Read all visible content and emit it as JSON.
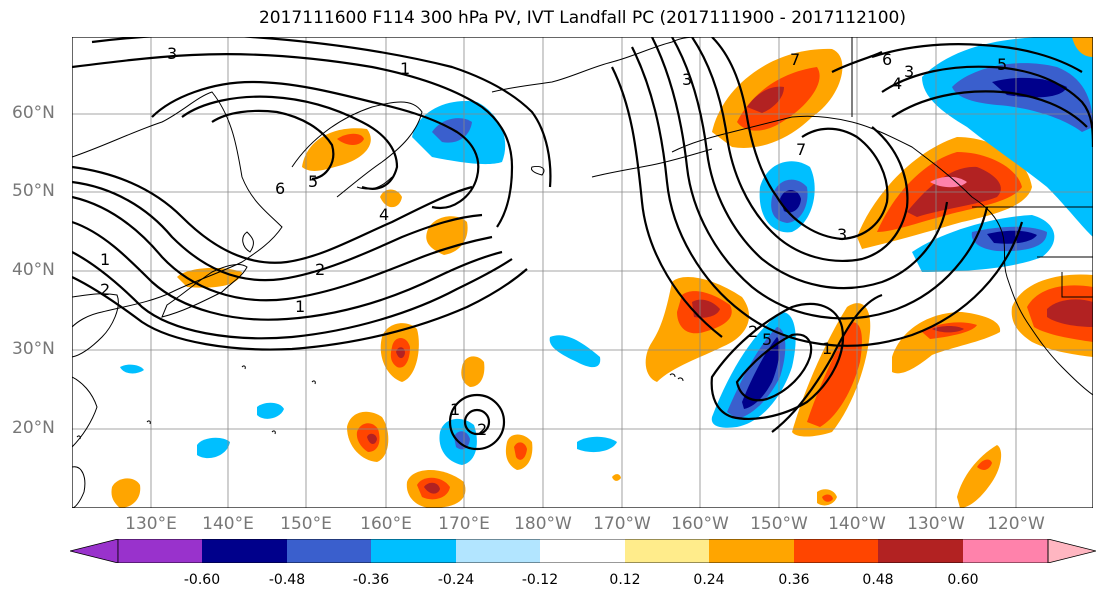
{
  "title": "2017111600 F114 300 hPa PV, IVT Landfall PC (2017111900 - 2017112100)",
  "lat_labels": [
    "60°N",
    "50°N",
    "40°N",
    "30°N",
    "20°N"
  ],
  "lon_labels": [
    "130°E",
    "140°E",
    "150°E",
    "160°E",
    "170°E",
    "180°W",
    "170°W",
    "160°W",
    "150°W",
    "140°W",
    "130°W",
    "120°W"
  ],
  "contour_labels": [
    "3",
    "6",
    "5",
    "4",
    "1",
    "2",
    "2",
    "1",
    "1",
    "2",
    "7",
    "6",
    "4",
    "3",
    "3",
    "5",
    "7",
    "3",
    "2",
    "5",
    "1",
    "1"
  ],
  "colorbar": {
    "tick_labels": [
      "-0.60",
      "-0.48",
      "-0.36",
      "-0.24",
      "-0.12",
      "0.12",
      "0.24",
      "0.36",
      "0.48",
      "0.60"
    ],
    "colors": [
      "#9932cc",
      "#00008b",
      "#3a5fcd",
      "#00bfff",
      "#b2e5ff",
      "#ffffff",
      "#ffec8b",
      "#ffa500",
      "#ff4500",
      "#b22222",
      "#ff82ab",
      "#ffb6c1"
    ]
  },
  "colors": {
    "contour": "#000000",
    "grid": "#888888",
    "coast": "#000000"
  }
}
